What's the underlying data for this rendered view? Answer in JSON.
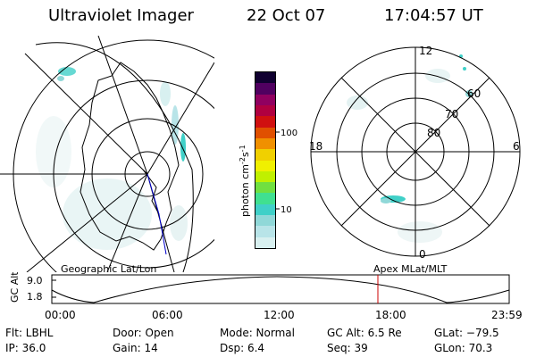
{
  "header": {
    "title": "Ultraviolet Imager",
    "date": "22 Oct 07",
    "time": "17:04:57 UT"
  },
  "colorbar": {
    "unit_main": "photon cm",
    "unit_exp1": "-2",
    "unit_s": "s",
    "unit_exp2": "-1",
    "tick_high": "100",
    "tick_low": "10",
    "colors": [
      "#d8f0f0",
      "#b8e4e8",
      "#90d8d8",
      "#40d0c8",
      "#40e090",
      "#70e040",
      "#c0f000",
      "#f0f000",
      "#f0d000",
      "#f09000",
      "#e05000",
      "#d01010",
      "#b00040",
      "#900060",
      "#500060",
      "#100030"
    ]
  },
  "polar": {
    "top": "12",
    "bottom": "0",
    "left": "18",
    "right": "6",
    "rings": [
      "80",
      "70",
      "60"
    ]
  },
  "timeline": {
    "ylabel": "GC Alt",
    "ytick_high": "9.0",
    "ytick_low": "1.8",
    "left_label": "Geographic Lat/Lon",
    "right_label": "Apex MLat/MLT",
    "ticks": [
      "00:00",
      "06:00",
      "12:00",
      "18:00",
      "23:59"
    ],
    "marker_time": "17:04:57",
    "marker_color": "#cc0000"
  },
  "info": {
    "flt": "Flt: LBHL",
    "ip": "IP: 36.0",
    "door": "Door: Open",
    "gain": "Gain: 14",
    "mode": "Mode: Normal",
    "dsp": "Dsp:    6.4",
    "gcalt": "GC Alt: 6.5 Re",
    "seq": "Seq: 39",
    "glat": "GLat: −79.5",
    "glon": "GLon:  70.3"
  }
}
